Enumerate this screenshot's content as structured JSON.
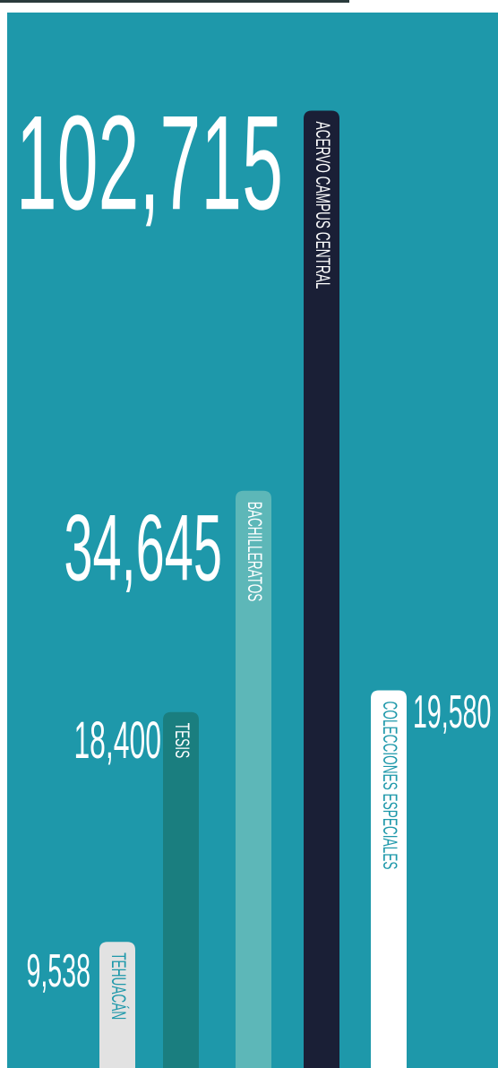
{
  "chart_data": {
    "type": "bar",
    "categories": [
      "TEHUACÁN",
      "TESIS",
      "BACHILLERATOS",
      "ACERVO CAMPUS CENTRAL",
      "COLECCIONES ESPECIALES"
    ],
    "values": [
      9538,
      18400,
      34645,
      102715,
      19580
    ],
    "value_labels": [
      "9,538",
      "18,400",
      "34,645",
      "102,715",
      "19,580"
    ],
    "colors": [
      "#e2e2e2",
      "#1a7e7f",
      "#5db7b8",
      "#1a1f36",
      "#ffffff"
    ],
    "label_colors": [
      "#1e98aa",
      "#ffffff",
      "#ffffff",
      "#ffffff",
      "#1e98aa"
    ],
    "background": "#1e98aa",
    "log_scale": true,
    "ylim": [
      6650,
      136000
    ]
  }
}
